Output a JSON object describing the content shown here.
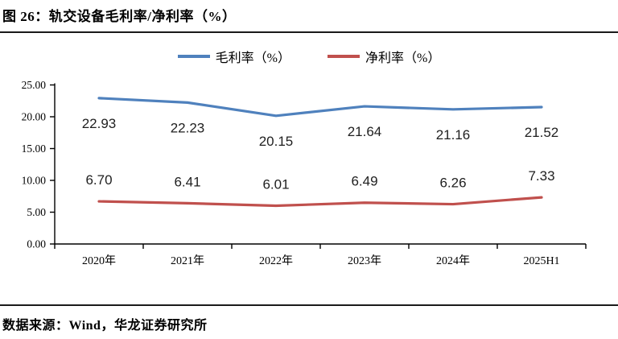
{
  "title": "图 26：轨交设备毛利率/净利率（%）",
  "source": "数据来源：Wind，华龙证券研究所",
  "colors": {
    "gross_margin_line": "#4F81BD",
    "net_margin_line": "#C0504D",
    "axis": "#000000",
    "data_label": "#1f1f1f"
  },
  "legend": {
    "items": [
      {
        "label": "毛利率（%）",
        "color": "#4F81BD"
      },
      {
        "label": "净利率（%）",
        "color": "#C0504D"
      }
    ]
  },
  "chart_data": {
    "type": "line",
    "title": "轨交设备毛利率/净利率（%）",
    "categories": [
      "2020年",
      "2021年",
      "2022年",
      "2023年",
      "2024年",
      "2025H1"
    ],
    "series": [
      {
        "name": "毛利率（%）",
        "color": "#4F81BD",
        "values": [
          22.93,
          22.23,
          20.15,
          21.64,
          21.16,
          21.52
        ],
        "label_position": "below"
      },
      {
        "name": "净利率（%）",
        "color": "#C0504D",
        "values": [
          6.7,
          6.41,
          6.01,
          6.49,
          6.26,
          7.33
        ],
        "label_position": "above"
      }
    ],
    "y_axis": {
      "min": 0,
      "max": 25,
      "step": 5,
      "tick_labels": [
        "0.00",
        "5.00",
        "10.00",
        "15.00",
        "20.00",
        "25.00"
      ]
    },
    "x_axis_label": "",
    "y_axis_label": "",
    "grid": false,
    "legend_position": "top",
    "data_labels_decimals": 2
  }
}
